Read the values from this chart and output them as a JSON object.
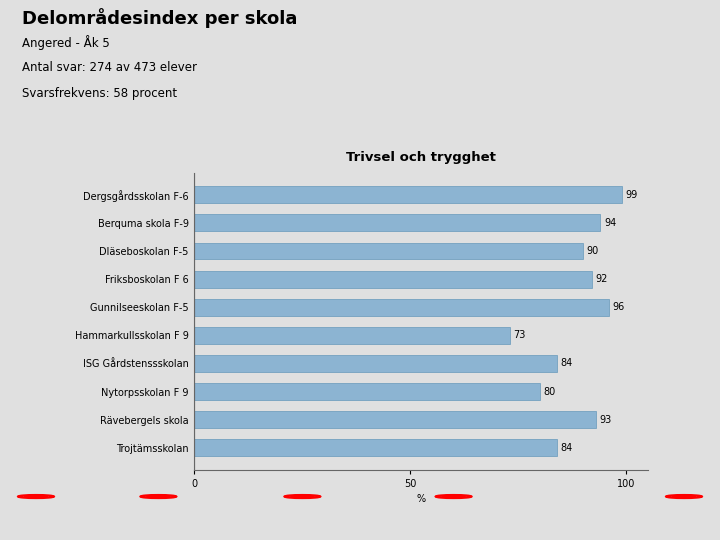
{
  "title": "Delområdesindex per skola",
  "subtitle_lines": [
    "Angered - Åk 5",
    "Antal svar: 274 av 473 elever",
    "Svarsfrekvens: 58 procent"
  ],
  "section_title": "Trivsel och trygghet",
  "schools": [
    "Dergsgårdsskolan F-6",
    "Berquma skola F-9",
    "Dläseboskolan F-5",
    "Friksboskolan F 6",
    "Gunnilseeskolan F-5",
    "Hammarkullsskolan F 9",
    "ISG Gårdstenssskolan",
    "Nytorpsskolan F 9",
    "Rävebergels skola",
    "Trojtämsskolan"
  ],
  "values": [
    99,
    94,
    90,
    92,
    96,
    73,
    84,
    80,
    93,
    84
  ],
  "bar_color": "#8cb4d2",
  "bar_edge_color": "#6699bb",
  "background_color": "#e0e0e0",
  "xlim": [
    0,
    105
  ],
  "xticks": [
    0,
    50,
    100
  ],
  "xlabel": "%",
  "title_fontsize": 13,
  "subtitle_fontsize": 8.5,
  "section_title_fontsize": 9.5,
  "label_fontsize": 7,
  "value_fontsize": 7,
  "tick_fontsize": 7
}
